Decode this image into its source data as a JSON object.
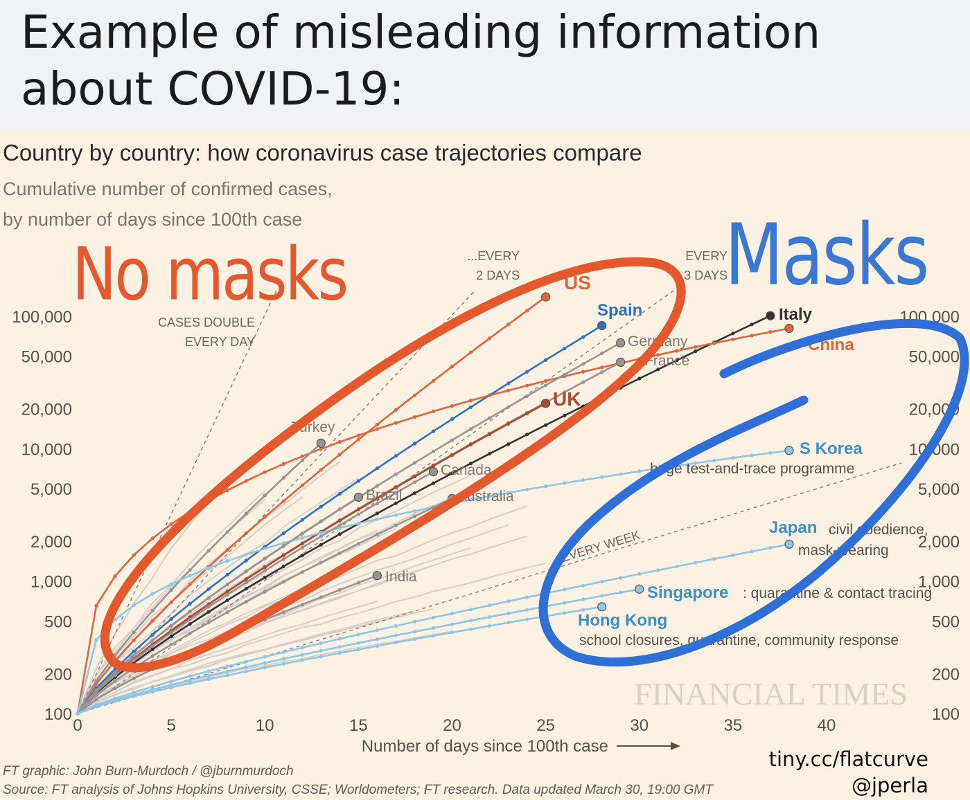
{
  "header": {
    "title": "Example of misleading information\nabout COVID-19:"
  },
  "annotations": {
    "no_masks": "No masks",
    "masks": "Masks"
  },
  "footer": {
    "credit": "FT graphic: John Burn-Murdoch / @jburnmurdoch",
    "source": "Source: FT analysis of Johns Hopkins University, CSSE; Worldometers; FT research. Data updated March 30, 19:00 GMT",
    "handle_url": "tiny.cc/flatcurve",
    "handle_user": "@jperla"
  },
  "colors": {
    "panel_bg": "#fdf1e4",
    "annotation_red": "#e3582c",
    "annotation_blue": "#3a78d2",
    "series_gray": "#bdb6b0",
    "series_highlight_blue": "#a8d2e8"
  },
  "chart_data": {
    "type": "line",
    "title": "Country by country: how coronavirus case trajectories compare",
    "subtitle_line1": "Cumulative number of confirmed cases,",
    "subtitle_line2": "by number of days since 100th case",
    "xlabel": "Number of days since 100th case",
    "ylabel": "",
    "y_scale": "log",
    "xlim": [
      0,
      44
    ],
    "ylim": [
      100,
      150000
    ],
    "x_ticks": [
      0,
      5,
      10,
      15,
      20,
      25,
      30,
      35,
      40
    ],
    "y_ticks": [
      100,
      200,
      500,
      1000,
      2000,
      5000,
      10000,
      20000,
      50000,
      100000
    ],
    "y_tick_labels": [
      "100",
      "200",
      "500",
      "1,000",
      "2,000",
      "5,000",
      "10,000",
      "20,000",
      "50,000",
      "100,000"
    ],
    "grid": false,
    "watermark": "FINANCIAL TIMES",
    "reference_lines": [
      {
        "label_lines": [
          "CASES DOUBLE",
          "EVERY DAY"
        ],
        "doubling_days": 1
      },
      {
        "label_lines": [
          "...EVERY",
          "2 DAYS"
        ],
        "doubling_days": 2
      },
      {
        "label_lines": [
          "EVERY",
          "3 DAYS"
        ],
        "doubling_days": 3
      },
      {
        "label_lines": [
          "EVERY WEEK"
        ],
        "doubling_days": 7
      }
    ],
    "series": [
      {
        "name": "US",
        "color": "#e0643c",
        "days": 25,
        "end": 140000
      },
      {
        "name": "Spain",
        "color": "#2f6fc6",
        "days": 28,
        "end": 85000
      },
      {
        "name": "Italy",
        "color": "#333333",
        "days": 37,
        "end": 101000
      },
      {
        "name": "China",
        "color": "#e0643c",
        "days": 38,
        "end": 81000
      },
      {
        "name": "Germany",
        "color": "#9a9390",
        "days": 29,
        "end": 63000
      },
      {
        "name": "France",
        "color": "#9a9390",
        "days": 29,
        "end": 45000
      },
      {
        "name": "UK",
        "color": "#b0472f",
        "days": 25,
        "end": 22000
      },
      {
        "name": "Turkey",
        "color": "#9a9390",
        "days": 13,
        "end": 11000
      },
      {
        "name": "S Korea",
        "color": "#8fc6e3",
        "days": 38,
        "end": 9700
      },
      {
        "name": "Canada",
        "color": "#9a9390",
        "days": 19,
        "end": 6700
      },
      {
        "name": "Brazil",
        "color": "#9a9390",
        "days": 15,
        "end": 4300
      },
      {
        "name": "Australia",
        "color": "#9a9390",
        "days": 20,
        "end": 4200
      },
      {
        "name": "Japan",
        "color": "#8fc6e3",
        "days": 38,
        "end": 1900
      },
      {
        "name": "India",
        "color": "#9a9390",
        "days": 16,
        "end": 1100
      },
      {
        "name": "Singapore",
        "color": "#8fc6e3",
        "days": 30,
        "end": 870
      },
      {
        "name": "Hong Kong",
        "color": "#8fc6e3",
        "days": 28,
        "end": 640
      }
    ],
    "annotations": [
      {
        "country": "S Korea",
        "text": "huge test-and-trace programme"
      },
      {
        "country": "Japan",
        "text_lines": [
          "civil obedience,",
          "mask-wearing"
        ]
      },
      {
        "country": "Singapore",
        "text": ": quarantine & contact tracing"
      },
      {
        "country": "Hong Kong",
        "text": "school closures, quarantine, community response"
      }
    ]
  }
}
